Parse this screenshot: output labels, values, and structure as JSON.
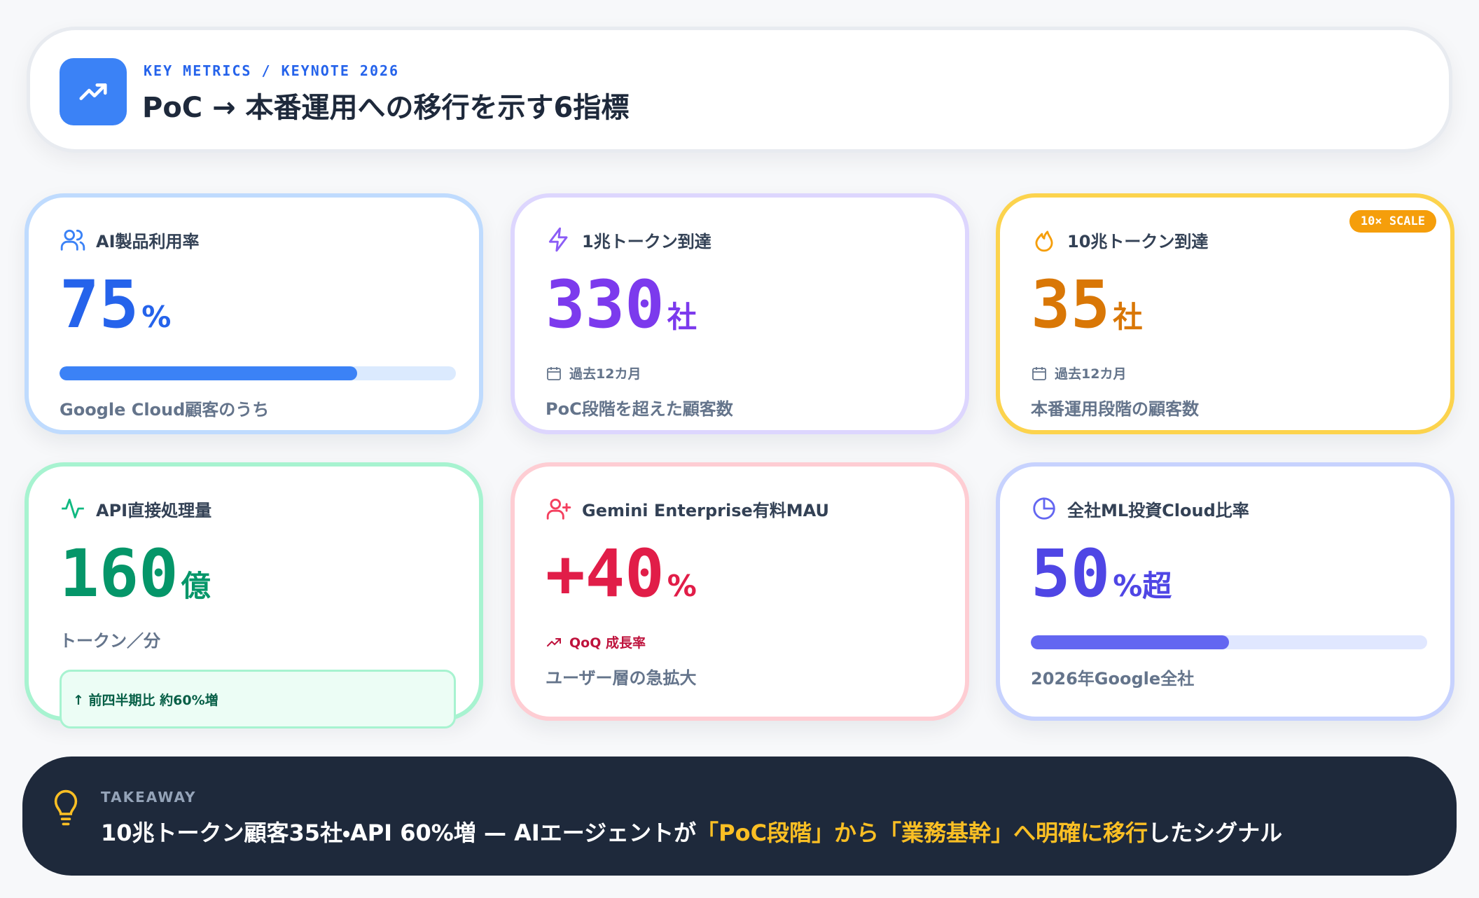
{
  "header": {
    "eyebrow": "KEY METRICS / KEYNOTE 2026",
    "title": "PoC → 本番運用への移行を示す6指標"
  },
  "cards": [
    {
      "label": "AI製品利用率",
      "value": 75,
      "unit": "%",
      "caption": "Google Cloud顧客のうち"
    },
    {
      "label": "1兆トークン到達",
      "value": 330,
      "unit": "社",
      "period": "過去12カ月",
      "caption": "PoC段階を超えた顧客数"
    },
    {
      "label": "10兆トークン到達",
      "badge": "10× SCALE",
      "value": 35,
      "unit": "社",
      "period": "過去12カ月",
      "caption": "本番運用段階の顧客数"
    },
    {
      "label": "API直接処理量",
      "value": 160,
      "unit": "億",
      "subunit": "トークン／分",
      "note": "↑ 前四半期比 約60%増"
    },
    {
      "label": "Gemini Enterprise有料MAU",
      "value": "+40",
      "unit": "%",
      "growth": "QoQ 成長率",
      "caption": "ユーザー層の急拡大"
    },
    {
      "label": "全社ML投資Cloud比率",
      "value": 50,
      "unit": "%超",
      "caption": "2026年Google全社"
    }
  ],
  "takeaway": {
    "label": "TAKEAWAY",
    "text": [
      "10兆トークン顧客35社・API 60%増 — AIエージェントが",
      "「PoC段階」から「業務基幹」へ明確に移行",
      "したシグナル"
    ]
  }
}
